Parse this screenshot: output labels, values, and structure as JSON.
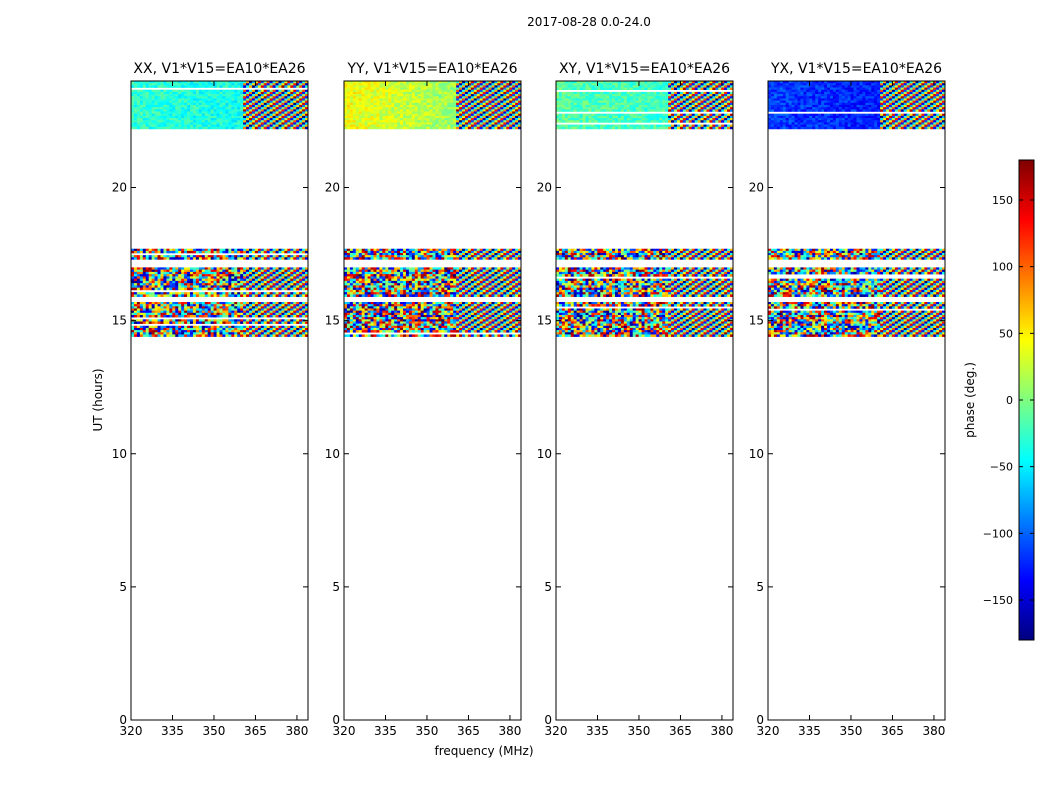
{
  "figure": {
    "suptitle": "2017-08-28 0.0-24.0"
  },
  "chart_data": {
    "type": "heatmap",
    "xlabel": "frequency (MHz)",
    "ylabel": "UT (hours)",
    "xlim": [
      320,
      384
    ],
    "ylim": [
      0,
      24
    ],
    "xticks": [
      320,
      335,
      350,
      365,
      380
    ],
    "yticks": [
      0,
      5,
      10,
      15,
      20
    ],
    "panels": [
      {
        "title": "XX, V1*V15=EA10*EA26",
        "pol": "XX"
      },
      {
        "title": "YY, V1*V15=EA10*EA26",
        "pol": "YY"
      },
      {
        "title": "XY, V1*V15=EA10*EA26",
        "pol": "XY"
      },
      {
        "title": "YX, V1*V15=EA10*EA26",
        "pol": "YX"
      }
    ],
    "data_bands_ut": [
      [
        14.4,
        15.7
      ],
      [
        15.9,
        17.0
      ],
      [
        17.3,
        17.7
      ],
      [
        22.2,
        24.0
      ]
    ],
    "colorbar": {
      "label": "phase (deg.)",
      "range": [
        -180,
        180
      ],
      "ticks": [
        -150,
        -100,
        -50,
        0,
        50,
        100,
        150
      ],
      "colormap": "jet"
    }
  }
}
